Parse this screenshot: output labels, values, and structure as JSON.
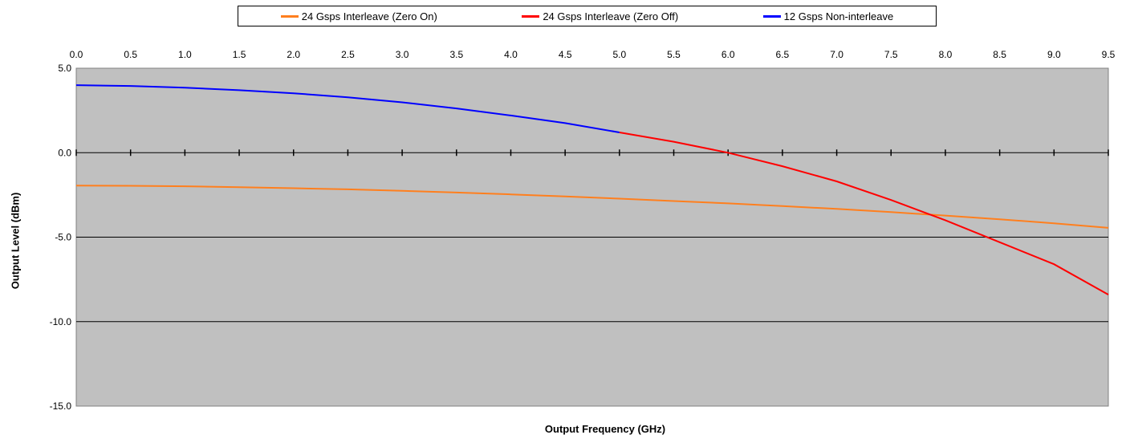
{
  "chart_data": {
    "type": "line",
    "xlabel": "Output Frequency (GHz)",
    "ylabel": "Output Level (dBm)",
    "xlim": [
      0.0,
      9.5
    ],
    "ylim": [
      -15.0,
      5.0
    ],
    "x_ticks": [
      "0.0",
      "0.5",
      "1.0",
      "1.5",
      "2.0",
      "2.5",
      "3.0",
      "3.5",
      "4.0",
      "4.5",
      "5.0",
      "5.5",
      "6.0",
      "6.5",
      "7.0",
      "7.5",
      "8.0",
      "8.5",
      "9.0",
      "9.5"
    ],
    "y_ticks": [
      "5.0",
      "0.0",
      "-5.0",
      "-10.0",
      "-15.0"
    ],
    "x_axis_position": "top",
    "grid": "horizontal",
    "plot_background": "#c0c0c0",
    "legend_position": "top",
    "series": [
      {
        "name": "24 Gsps Interleave (Zero On)",
        "color": "#ff7f1e",
        "x": [
          0.0,
          0.5,
          1.0,
          1.5,
          2.0,
          2.5,
          3.0,
          3.5,
          4.0,
          4.5,
          5.0,
          5.5,
          6.0,
          6.5,
          7.0,
          7.5,
          8.0,
          8.5,
          9.0,
          9.5
        ],
        "y": [
          -1.95,
          -1.96,
          -1.99,
          -2.04,
          -2.1,
          -2.17,
          -2.26,
          -2.36,
          -2.47,
          -2.59,
          -2.72,
          -2.86,
          -3.0,
          -3.16,
          -3.33,
          -3.52,
          -3.72,
          -3.94,
          -4.18,
          -4.45
        ]
      },
      {
        "name": "24 Gsps Interleave (Zero Off)",
        "color": "#ff0000",
        "x": [
          5.0,
          5.5,
          6.0,
          6.5,
          7.0,
          7.5,
          8.0,
          8.5,
          9.0,
          9.5
        ],
        "y": [
          1.2,
          0.65,
          0.0,
          -0.8,
          -1.7,
          -2.8,
          -4.0,
          -5.3,
          -6.6,
          -8.4
        ]
      },
      {
        "name": "12 Gsps Non-interleave",
        "color": "#0000ff",
        "x": [
          0.0,
          0.5,
          1.0,
          1.5,
          2.0,
          2.5,
          3.0,
          3.5,
          4.0,
          4.5,
          5.0
        ],
        "y": [
          4.0,
          3.95,
          3.85,
          3.7,
          3.52,
          3.28,
          2.98,
          2.62,
          2.2,
          1.75,
          1.2
        ]
      }
    ]
  }
}
